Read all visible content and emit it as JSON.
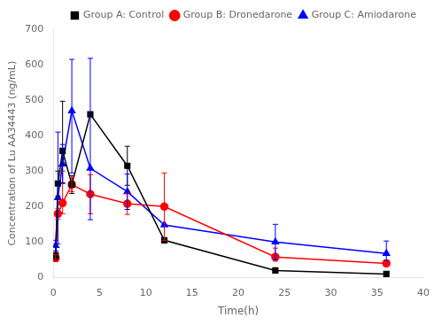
{
  "chart_data": {
    "type": "line",
    "x": [
      0.25,
      0.5,
      1,
      2,
      4,
      8,
      12,
      24,
      36
    ],
    "series": [
      {
        "name": "Group A: Control",
        "color": "#000000",
        "marker": "square",
        "values": [
          62,
          265,
          357,
          262,
          460,
          315,
          105,
          20,
          10
        ],
        "yerr_low": [
          12,
          35,
          90,
          25,
          0,
          55,
          0,
          5,
          3
        ],
        "yerr_high": [
          12,
          35,
          140,
          25,
          0,
          55,
          0,
          5,
          3
        ]
      },
      {
        "name": "Group B: Dronedarone",
        "color": "#ff0000",
        "marker": "circle",
        "values": [
          55,
          180,
          210,
          262,
          235,
          208,
          200,
          58,
          40
        ],
        "yerr_low": [
          10,
          15,
          30,
          20,
          55,
          30,
          95,
          12,
          8
        ],
        "yerr_high": [
          10,
          15,
          90,
          20,
          55,
          30,
          95,
          25,
          8
        ]
      },
      {
        "name": "Group C: Amiodarone",
        "color": "#0000ff",
        "marker": "triangle",
        "values": [
          90,
          225,
          320,
          470,
          308,
          242,
          148,
          100,
          68
        ],
        "yerr_low": [
          15,
          130,
          55,
          175,
          145,
          50,
          0,
          50,
          20
        ],
        "yerr_high": [
          15,
          185,
          55,
          145,
          310,
          50,
          0,
          50,
          35
        ]
      }
    ],
    "xlabel": "Time(h)",
    "ylabel": "Concentration of Lu AA34443 (ng/mL)",
    "xlim": [
      0,
      40
    ],
    "ylim": [
      0,
      700
    ],
    "xticks": [
      0,
      5,
      10,
      15,
      20,
      25,
      30,
      35,
      40
    ],
    "yticks": [
      0,
      100,
      200,
      300,
      400,
      500,
      600,
      700
    ],
    "grid": false,
    "legend": "upper right"
  }
}
